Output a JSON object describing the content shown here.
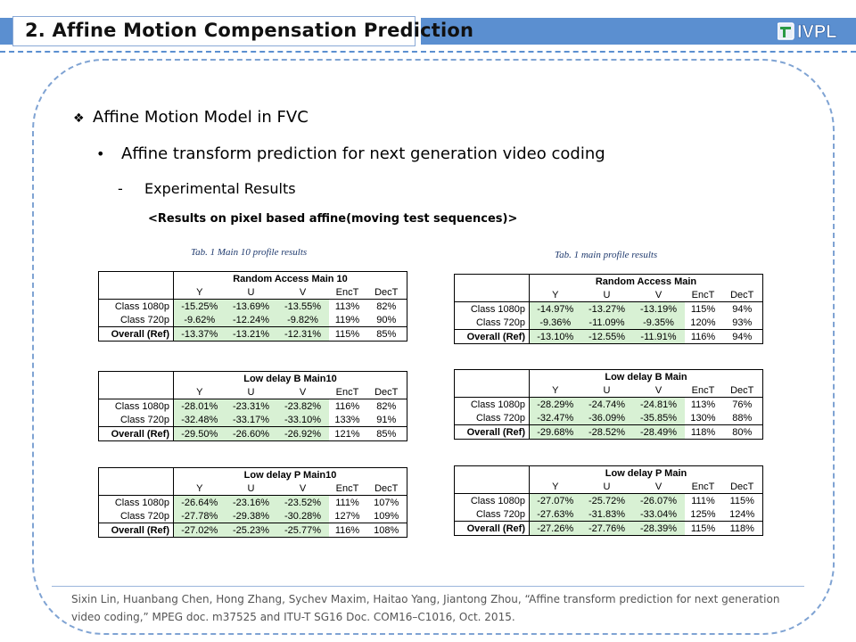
{
  "header": {
    "title": "2. Affine Motion Compensation Prediction",
    "logo_text": "IVPL"
  },
  "bullets": {
    "level1": "Affine Motion Model in FVC",
    "level1_marker": "❖",
    "level2": "Affine transform prediction for next generation video coding",
    "level2_marker": "•",
    "level3": "Experimental Results",
    "level3_marker": "-",
    "subtitle": "<Results on pixel based affine(moving test sequences)>"
  },
  "captions": {
    "left": "Tab. 1 Main 10 profile results",
    "right": "Tab. 1 main profile results"
  },
  "tables": {
    "headers": [
      "Y",
      "U",
      "V",
      "EncT",
      "DecT"
    ],
    "left": [
      {
        "title": "Random Access Main 10",
        "rows": [
          [
            "Class 1080p",
            "-15.25%",
            "-13.69%",
            "-13.55%",
            "113%",
            "82%"
          ],
          [
            "Class 720p",
            "-9.62%",
            "-12.24%",
            "-9.82%",
            "119%",
            "90%"
          ]
        ],
        "overall": [
          "Overall (Ref)",
          "-13.37%",
          "-13.21%",
          "-12.31%",
          "115%",
          "85%"
        ]
      },
      {
        "title": "Low delay B Main10",
        "rows": [
          [
            "Class 1080p",
            "-28.01%",
            "-23.31%",
            "-23.82%",
            "116%",
            "82%"
          ],
          [
            "Class 720p",
            "-32.48%",
            "-33.17%",
            "-33.10%",
            "133%",
            "91%"
          ]
        ],
        "overall": [
          "Overall (Ref)",
          "-29.50%",
          "-26.60%",
          "-26.92%",
          "121%",
          "85%"
        ]
      },
      {
        "title": "Low delay P Main10",
        "rows": [
          [
            "Class 1080p",
            "-26.64%",
            "-23.16%",
            "-23.52%",
            "111%",
            "107%"
          ],
          [
            "Class 720p",
            "-27.78%",
            "-29.38%",
            "-30.28%",
            "127%",
            "109%"
          ]
        ],
        "overall": [
          "Overall (Ref)",
          "-27.02%",
          "-25.23%",
          "-25.77%",
          "116%",
          "108%"
        ]
      }
    ],
    "right": [
      {
        "title": "Random Access Main",
        "rows": [
          [
            "Class 1080p",
            "-14.97%",
            "-13.27%",
            "-13.19%",
            "115%",
            "94%"
          ],
          [
            "Class 720p",
            "-9.36%",
            "-11.09%",
            "-9.35%",
            "120%",
            "93%"
          ]
        ],
        "overall": [
          "Overall (Ref)",
          "-13.10%",
          "-12.55%",
          "-11.91%",
          "116%",
          "94%"
        ]
      },
      {
        "title": "Low delay B Main",
        "rows": [
          [
            "Class 1080p",
            "-28.29%",
            "-24.74%",
            "-24.81%",
            "113%",
            "76%"
          ],
          [
            "Class 720p",
            "-32.47%",
            "-36.09%",
            "-35.85%",
            "130%",
            "88%"
          ]
        ],
        "overall": [
          "Overall (Ref)",
          "-29.68%",
          "-28.52%",
          "-28.49%",
          "118%",
          "80%"
        ]
      },
      {
        "title": "Low delay P Main",
        "rows": [
          [
            "Class 1080p",
            "-27.07%",
            "-25.72%",
            "-26.07%",
            "111%",
            "115%"
          ],
          [
            "Class 720p",
            "-27.63%",
            "-31.83%",
            "-33.04%",
            "125%",
            "124%"
          ]
        ],
        "overall": [
          "Overall (Ref)",
          "-27.26%",
          "-27.76%",
          "-28.39%",
          "115%",
          "118%"
        ]
      }
    ]
  },
  "footer": {
    "reference": "Sixin Lin, Huanbang Chen, Hong Zhang, Sychev Maxim, Haitao Yang, Jiantong Zhou, “Affine transform prediction for next generation video coding,” MPEG doc. m37525 and ITU-T SG16 Doc. COM16–C1016, Oct. 2015."
  },
  "colors": {
    "accent_blue": "#5b8fd0",
    "cell_green": "#d8f1d4",
    "frame_dash": "#7fa3d3"
  }
}
